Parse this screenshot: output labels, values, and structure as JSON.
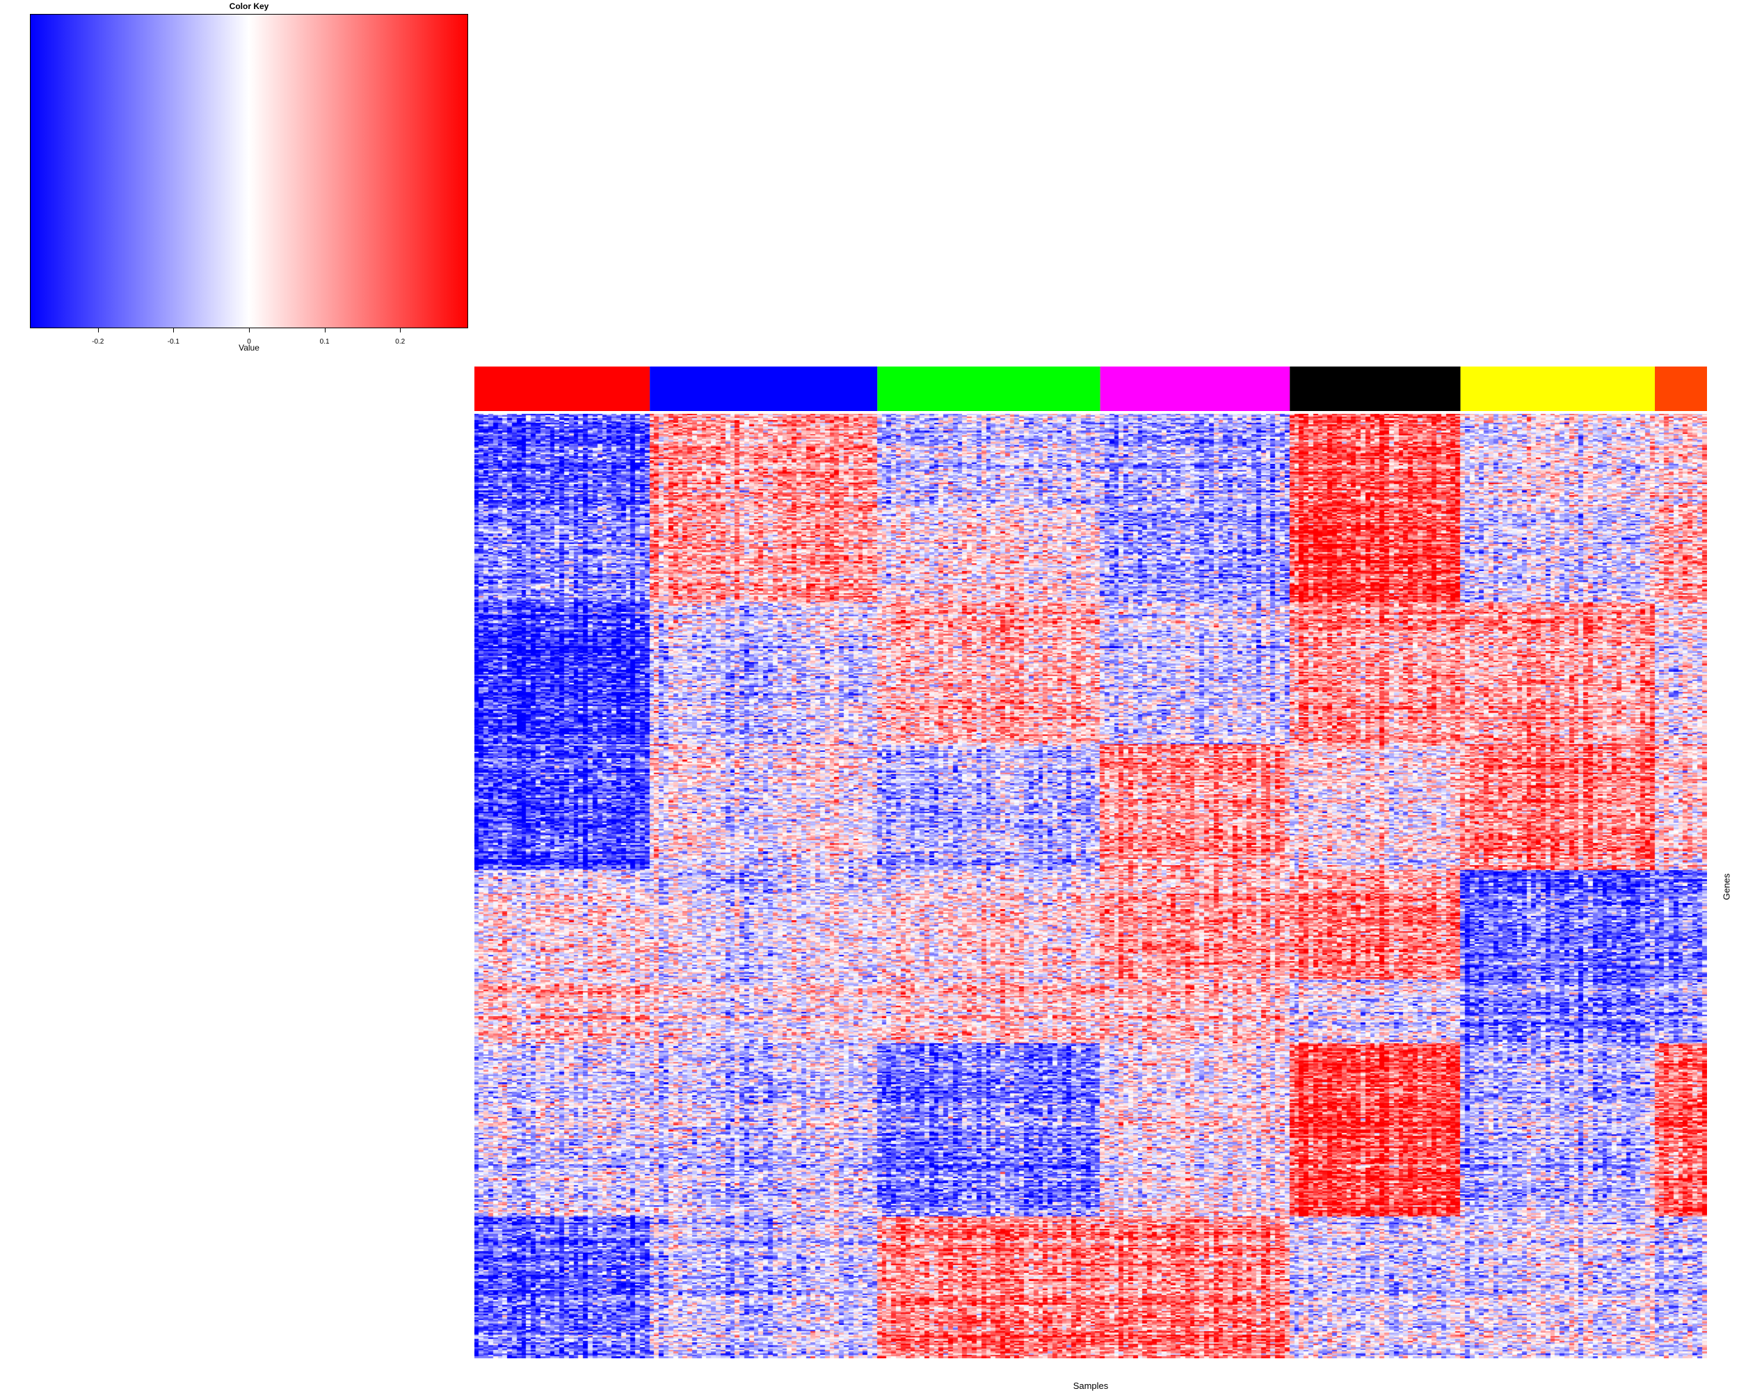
{
  "chart_data": {
    "type": "heatmap",
    "title": "",
    "xlabel": "Samples",
    "ylabel": "Genes",
    "color_key": {
      "title": "Color Key",
      "xlabel": "Value",
      "range": [
        -0.29,
        0.29
      ],
      "colors": [
        "#0000ff",
        "#ffffff",
        "#ff0000"
      ],
      "ticks": [
        -0.2,
        -0.1,
        0,
        0.1,
        0.2
      ],
      "tick_labels": [
        "-0.2",
        "-0.1",
        "0",
        "0.1",
        "0.2"
      ]
    },
    "sample_groups": [
      {
        "color": "#ff0000",
        "samples": 37
      },
      {
        "color": "#0000ff",
        "samples": 48
      },
      {
        "color": "#00ff00",
        "samples": 47
      },
      {
        "color": "#ff00ff",
        "samples": 40
      },
      {
        "color": "#000000",
        "samples": 36
      },
      {
        "color": "#ffff00",
        "samples": 41
      },
      {
        "color": "#ff4500",
        "samples": 11
      }
    ],
    "gene_blocks": [
      {
        "genes": 60,
        "pattern": [
          -0.2,
          0.12,
          -0.05,
          -0.1,
          0.18,
          0.0,
          0.05
        ]
      },
      {
        "genes": 60,
        "pattern": [
          -0.15,
          0.1,
          0.02,
          -0.12,
          0.2,
          -0.05,
          0.1
        ]
      },
      {
        "genes": 90,
        "pattern": [
          -0.25,
          -0.05,
          0.08,
          -0.05,
          0.1,
          0.1,
          0.0
        ]
      },
      {
        "genes": 80,
        "pattern": [
          -0.22,
          0.0,
          -0.08,
          0.12,
          0.0,
          0.15,
          0.05
        ]
      },
      {
        "genes": 70,
        "pattern": [
          0.0,
          -0.03,
          0.02,
          0.1,
          0.12,
          -0.18,
          -0.15
        ]
      },
      {
        "genes": 40,
        "pattern": [
          0.05,
          0.0,
          0.05,
          0.05,
          -0.05,
          -0.15,
          -0.1
        ]
      },
      {
        "genes": 110,
        "pattern": [
          -0.05,
          -0.05,
          -0.15,
          0.0,
          0.2,
          -0.08,
          0.18
        ]
      },
      {
        "genes": 90,
        "pattern": [
          -0.18,
          -0.05,
          0.15,
          0.15,
          -0.05,
          -0.02,
          -0.05
        ]
      }
    ]
  }
}
